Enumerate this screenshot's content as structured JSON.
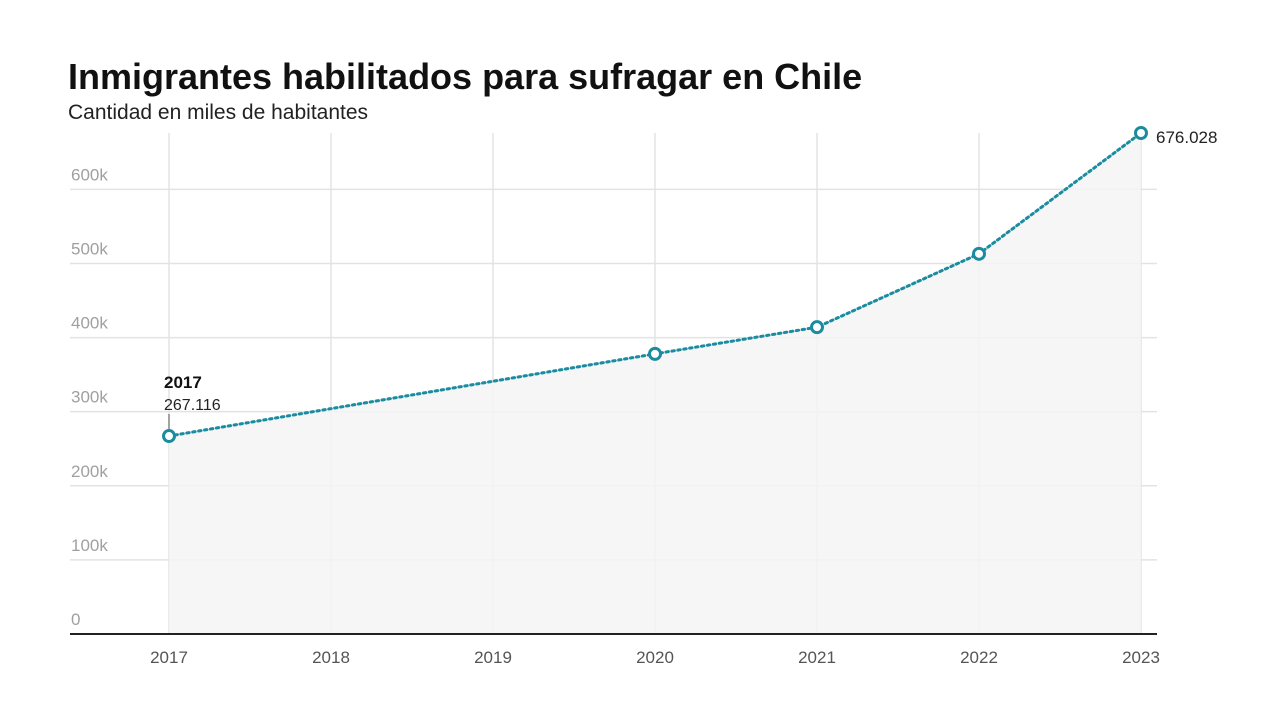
{
  "chart_data": {
    "type": "line",
    "title": "Inmigrantes habilitados para sufragar en Chile",
    "subtitle": "Cantidad en miles de habitantes",
    "xlabel": "",
    "ylabel": "",
    "x": [
      2017,
      2020,
      2021,
      2022,
      2023
    ],
    "x_ticks": [
      "2017",
      "2018",
      "2019",
      "2020",
      "2021",
      "2022",
      "2023"
    ],
    "y": [
      267116,
      378000,
      414000,
      513000,
      676028
    ],
    "y_ticks": [
      "0",
      "100k",
      "200k",
      "300k",
      "400k",
      "500k",
      "600k"
    ],
    "xlim": [
      2017,
      2023
    ],
    "ylim": [
      0,
      676028
    ],
    "grid": true,
    "legend": "none",
    "line_style": "dotted",
    "area_fill": true,
    "annotations": [
      {
        "x": 2017,
        "year_label": "2017",
        "value_label": "267.116"
      },
      {
        "x": 2023,
        "value_label": "676.028"
      }
    ],
    "colors": {
      "line": "#1b8ca0",
      "area": "#f4f4f4",
      "grid": "#e3e3e3",
      "axis": "#222222"
    }
  }
}
